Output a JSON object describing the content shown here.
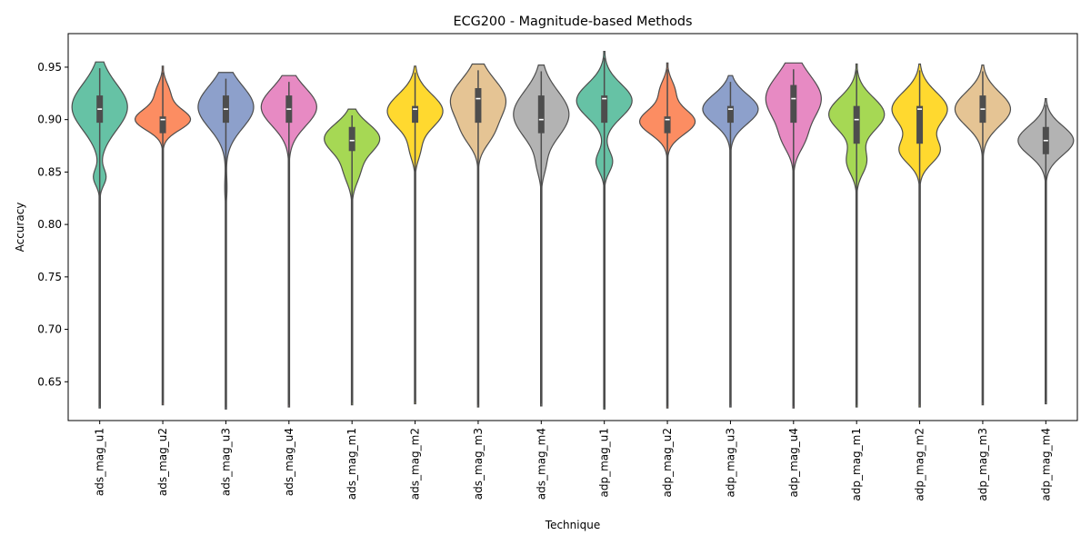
{
  "chart_data": {
    "type": "violin",
    "title": "ECG200 - Magnitude-based Methods",
    "xlabel": "Technique",
    "ylabel": "Accuracy",
    "ylim": [
      0.613,
      0.982
    ],
    "yticks": [
      0.65,
      0.7,
      0.75,
      0.8,
      0.85,
      0.9,
      0.95
    ],
    "ytick_labels": [
      "0.65",
      "0.70",
      "0.75",
      "0.80",
      "0.85",
      "0.90",
      "0.95"
    ],
    "grid": false,
    "palette": [
      "#66c2a5",
      "#fc8d62",
      "#8da0cb",
      "#e78ac3",
      "#a6d854",
      "#ffd92f",
      "#e5c494",
      "#b3b3b3"
    ],
    "categories": [
      "ads_mag_u1",
      "ads_mag_u2",
      "ads_mag_u3",
      "ads_mag_u4",
      "ads_mag_m1",
      "ads_mag_m2",
      "ads_mag_m3",
      "ads_mag_m4",
      "adp_mag_u1",
      "adp_mag_u2",
      "adp_mag_u3",
      "adp_mag_u4",
      "adp_mag_m1",
      "adp_mag_m2",
      "adp_mag_m3",
      "adp_mag_m4"
    ],
    "series": [
      {
        "min": 0.625,
        "max": 0.955,
        "q1": 0.897,
        "median": 0.91,
        "q3": 0.923,
        "modes": [
          [
            0.912,
            0.022,
            1.0
          ],
          [
            0.845,
            0.008,
            0.22
          ]
        ]
      },
      {
        "min": 0.628,
        "max": 0.951,
        "q1": 0.887,
        "median": 0.9,
        "q3": 0.903,
        "modes": [
          [
            0.9,
            0.01,
            1.0
          ],
          [
            0.925,
            0.01,
            0.25
          ]
        ]
      },
      {
        "min": 0.624,
        "max": 0.945,
        "q1": 0.897,
        "median": 0.91,
        "q3": 0.923,
        "modes": [
          [
            0.912,
            0.02,
            1.0
          ],
          [
            0.835,
            0.012,
            0.04
          ]
        ]
      },
      {
        "min": 0.626,
        "max": 0.942,
        "q1": 0.897,
        "median": 0.91,
        "q3": 0.923,
        "modes": [
          [
            0.912,
            0.018,
            1.0
          ]
        ]
      },
      {
        "min": 0.628,
        "max": 0.91,
        "q1": 0.87,
        "median": 0.88,
        "q3": 0.893,
        "modes": [
          [
            0.882,
            0.014,
            1.0
          ],
          [
            0.85,
            0.012,
            0.25
          ]
        ]
      },
      {
        "min": 0.629,
        "max": 0.951,
        "q1": 0.897,
        "median": 0.91,
        "q3": 0.913,
        "modes": [
          [
            0.908,
            0.016,
            1.0
          ],
          [
            0.87,
            0.01,
            0.15
          ]
        ]
      },
      {
        "min": 0.626,
        "max": 0.953,
        "q1": 0.897,
        "median": 0.92,
        "q3": 0.93,
        "modes": [
          [
            0.918,
            0.02,
            1.0
          ],
          [
            0.885,
            0.012,
            0.3
          ]
        ]
      },
      {
        "min": 0.627,
        "max": 0.952,
        "q1": 0.887,
        "median": 0.9,
        "q3": 0.923,
        "modes": [
          [
            0.905,
            0.022,
            1.0
          ],
          [
            0.855,
            0.01,
            0.1
          ]
        ]
      },
      {
        "min": 0.624,
        "max": 0.965,
        "q1": 0.897,
        "median": 0.92,
        "q3": 0.923,
        "modes": [
          [
            0.918,
            0.016,
            1.0
          ],
          [
            0.86,
            0.01,
            0.3
          ]
        ]
      },
      {
        "min": 0.625,
        "max": 0.954,
        "q1": 0.887,
        "median": 0.9,
        "q3": 0.903,
        "modes": [
          [
            0.898,
            0.012,
            1.0
          ],
          [
            0.928,
            0.01,
            0.25
          ]
        ]
      },
      {
        "min": 0.626,
        "max": 0.942,
        "q1": 0.897,
        "median": 0.91,
        "q3": 0.913,
        "modes": [
          [
            0.91,
            0.014,
            1.0
          ]
        ]
      },
      {
        "min": 0.625,
        "max": 0.954,
        "q1": 0.897,
        "median": 0.92,
        "q3": 0.933,
        "modes": [
          [
            0.92,
            0.022,
            1.0
          ],
          [
            0.88,
            0.012,
            0.25
          ]
        ]
      },
      {
        "min": 0.626,
        "max": 0.953,
        "q1": 0.877,
        "median": 0.9,
        "q3": 0.913,
        "modes": [
          [
            0.905,
            0.016,
            1.0
          ],
          [
            0.86,
            0.012,
            0.35
          ]
        ]
      },
      {
        "min": 0.626,
        "max": 0.953,
        "q1": 0.877,
        "median": 0.91,
        "q3": 0.913,
        "modes": [
          [
            0.91,
            0.016,
            1.0
          ],
          [
            0.87,
            0.012,
            0.7
          ]
        ]
      },
      {
        "min": 0.628,
        "max": 0.952,
        "q1": 0.897,
        "median": 0.91,
        "q3": 0.923,
        "modes": [
          [
            0.91,
            0.016,
            1.0
          ]
        ]
      },
      {
        "min": 0.629,
        "max": 0.92,
        "q1": 0.867,
        "median": 0.88,
        "q3": 0.893,
        "modes": [
          [
            0.88,
            0.014,
            1.0
          ]
        ]
      }
    ]
  }
}
